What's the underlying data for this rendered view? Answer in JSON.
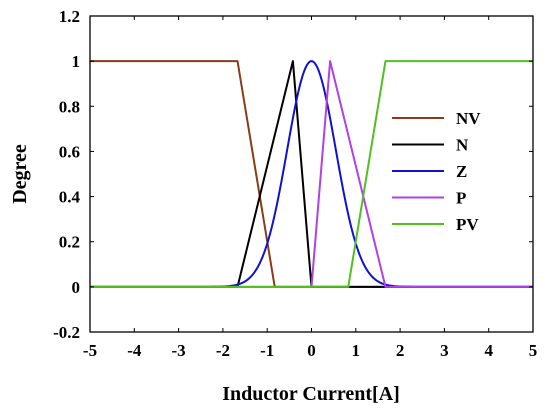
{
  "chart_data": {
    "type": "line",
    "title": "",
    "xlabel": "Inductor Current[A]",
    "ylabel": "Degree",
    "xlim": [
      -5,
      5
    ],
    "ylim": [
      -0.2,
      1.2
    ],
    "x_ticks": [
      -5,
      -4,
      -3,
      -2,
      -1,
      0,
      1,
      2,
      3,
      4,
      5
    ],
    "y_ticks": [
      -0.2,
      0,
      0.2,
      0.4,
      0.6,
      0.8,
      1,
      1.2
    ],
    "x_tick_labels": [
      "-5",
      "-4",
      "-3",
      "-2",
      "-1",
      "0",
      "1",
      "2",
      "3",
      "4",
      "5"
    ],
    "y_tick_labels": [
      "-0.2",
      "0",
      "0.2",
      "0.4",
      "0.6",
      "0.8",
      "1",
      "1.2"
    ],
    "grid": false,
    "legend_position": "right",
    "series": [
      {
        "name": "NV",
        "color": "#8B3A1A",
        "x": [
          -5,
          -1.67,
          -0.83,
          5
        ],
        "y": [
          1,
          1,
          0,
          0
        ]
      },
      {
        "name": "N",
        "color": "#000000",
        "x": [
          -5,
          -1.67,
          -0.42,
          0,
          5
        ],
        "y": [
          0,
          0,
          1,
          0,
          0
        ]
      },
      {
        "name": "Z",
        "color": "#1010D0",
        "shape": "gaussian",
        "center": 0,
        "sigma": 0.55,
        "x": [
          -5,
          -2.5,
          -2,
          -1.5,
          -1,
          -0.5,
          0,
          0.5,
          1,
          1.5,
          2,
          2.5,
          5
        ],
        "y": [
          0,
          0.0,
          0.001,
          0.024,
          0.192,
          0.662,
          1,
          0.662,
          0.192,
          0.024,
          0.001,
          0.0,
          0
        ]
      },
      {
        "name": "P",
        "color": "#B040E8",
        "x": [
          -5,
          0,
          0.42,
          1.67,
          5
        ],
        "y": [
          0,
          0,
          1,
          0,
          0
        ]
      },
      {
        "name": "PV",
        "color": "#50C020",
        "x": [
          -5,
          0.83,
          1.67,
          5
        ],
        "y": [
          0,
          0,
          1,
          1
        ]
      }
    ]
  }
}
